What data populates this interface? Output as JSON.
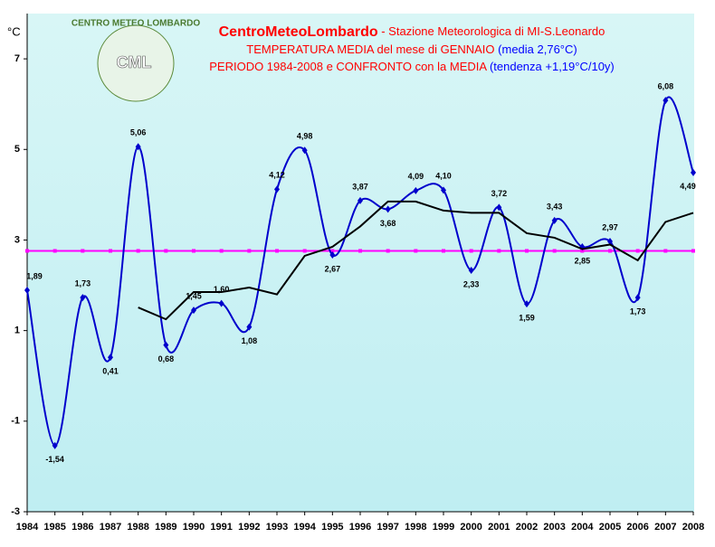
{
  "chart_data": {
    "type": "line",
    "title_parts": [
      "CentroMeteoLombardo",
      " - Stazione Meteorologica di MI-S.Leonardo"
    ],
    "subtitle_1": [
      "TEMPERATURA MEDIA del mese di GENNAIO ",
      "(media 2,76°C)"
    ],
    "subtitle_2": [
      "PERIODO 1984-2008 e CONFRONTO con la MEDIA ",
      "(tendenza +1,19°C/10y)"
    ],
    "y_label": "°C",
    "logo": {
      "ring": "CENTRO METEO LOMBARDO",
      "initials": "CML"
    },
    "categories": [
      "1984",
      "1985",
      "1986",
      "1987",
      "1988",
      "1989",
      "1990",
      "1991",
      "1992",
      "1993",
      "1994",
      "1995",
      "1996",
      "1997",
      "1998",
      "1999",
      "2000",
      "2001",
      "2002",
      "2003",
      "2004",
      "2005",
      "2006",
      "2007",
      "2008"
    ],
    "series": [
      {
        "color": "#0000cc",
        "smooth": true,
        "values": [
          1.89,
          -1.54,
          1.73,
          0.41,
          5.06,
          0.68,
          1.45,
          1.6,
          1.08,
          4.12,
          4.98,
          2.67,
          3.87,
          3.68,
          4.09,
          4.1,
          2.33,
          3.72,
          1.59,
          3.43,
          2.85,
          2.97,
          1.73,
          6.08,
          4.49
        ],
        "value_labels": [
          "1,89",
          "-1,54",
          "1,73",
          "0,41",
          "5,06",
          "0,68",
          "1,45",
          "1,60",
          "1,08",
          "4,12",
          "4,98",
          "2,67",
          "3,87",
          "3,68",
          "4,09",
          "4,10",
          "2,33",
          "3,72",
          "1,59",
          "3,43",
          "2,85",
          "2,97",
          "1,73",
          "6,08",
          "4,49"
        ]
      },
      {
        "color": "#000000",
        "smooth": false,
        "values": [
          null,
          null,
          null,
          null,
          1.51,
          1.25,
          1.85,
          1.85,
          1.95,
          1.8,
          2.65,
          2.85,
          3.3,
          3.85,
          3.85,
          3.65,
          3.6,
          3.6,
          3.15,
          3.05,
          2.8,
          2.9,
          2.55,
          3.4,
          3.6
        ]
      }
    ],
    "mean": {
      "value": 2.76,
      "color": "#ff00ff"
    },
    "ylim": [
      -3,
      8
    ],
    "yticks": [
      -3,
      -1,
      1,
      3,
      5,
      7
    ]
  }
}
